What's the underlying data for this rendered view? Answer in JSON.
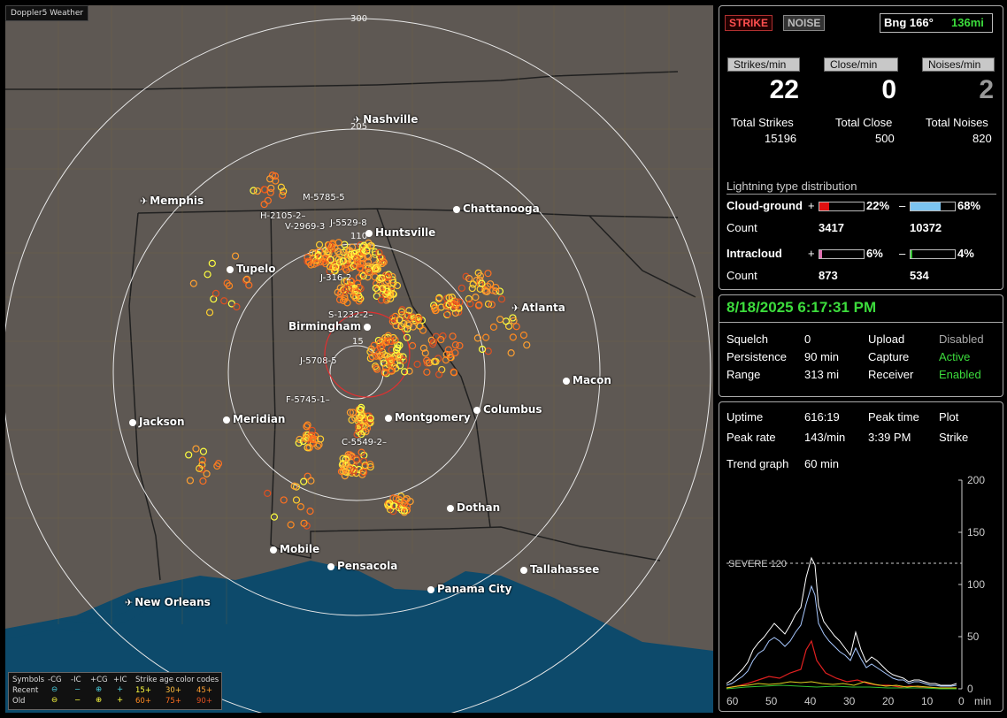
{
  "map": {
    "brand": "Doppler5 Weather",
    "ring_labels": [
      "300",
      "205",
      "110",
      "15"
    ],
    "cities": [
      {
        "name": "Nashville",
        "type": "airport"
      },
      {
        "name": "Memphis",
        "type": "airport"
      },
      {
        "name": "Chattanooga",
        "type": "city"
      },
      {
        "name": "Huntsville",
        "type": "city"
      },
      {
        "name": "Tupelo",
        "type": "city"
      },
      {
        "name": "Atlanta",
        "type": "airport"
      },
      {
        "name": "Birmingham",
        "type": "city"
      },
      {
        "name": "Macon",
        "type": "city"
      },
      {
        "name": "Jackson",
        "type": "city"
      },
      {
        "name": "Meridian",
        "type": "city"
      },
      {
        "name": "Montgomery",
        "type": "city"
      },
      {
        "name": "Columbus",
        "type": "city"
      },
      {
        "name": "Dothan",
        "type": "city"
      },
      {
        "name": "Mobile",
        "type": "city"
      },
      {
        "name": "Pensacola",
        "type": "city"
      },
      {
        "name": "Tallahassee",
        "type": "city"
      },
      {
        "name": "Panama City",
        "type": "city"
      },
      {
        "name": "New Orleans",
        "type": "airport"
      }
    ],
    "cells": [
      "M-5785-5",
      "H-2105-2–",
      "J-5529-8",
      "V-2969-3",
      "J-316-2",
      "S-1232-2–",
      "J-5708-5",
      "F-5745-1–",
      "C-5549-2–"
    ],
    "legend": {
      "symbols_label": "Symbols",
      "cols": [
        "-CG",
        "-IC",
        "+CG",
        "+IC"
      ],
      "rows": [
        "Recent",
        "Old"
      ],
      "age_title": "Strike age color codes",
      "recent_ages": [
        "15+",
        "30+",
        "45+"
      ],
      "old_ages": [
        "60+",
        "75+",
        "90+"
      ]
    }
  },
  "top": {
    "strike": "STRIKE",
    "noise": "NOISE",
    "bearing": "Bng 166°",
    "distance": "136mi",
    "rate_labels": [
      "Strikes/min",
      "Close/min",
      "Noises/min"
    ],
    "rates": [
      "22",
      "0",
      "2"
    ],
    "total_labels": [
      "Total Strikes",
      "Total Close",
      "Total Noises"
    ],
    "totals": [
      "15196",
      "500",
      "820"
    ],
    "dist_title": "Lightning type distribution",
    "cg_label": "Cloud-ground",
    "ic_label": "Intracloud",
    "count_label": "Count",
    "plus": "+",
    "minus": "–",
    "cg_pos_pct": "22%",
    "cg_neg_pct": "68%",
    "ic_pos_pct": "6%",
    "ic_neg_pct": "4%",
    "cg_pos_count": "3417",
    "cg_neg_count": "10372",
    "ic_pos_count": "873",
    "ic_neg_count": "534",
    "cg_pos_frac": 0.22,
    "cg_neg_frac": 0.68,
    "ic_pos_frac": 0.06,
    "ic_neg_frac": 0.04
  },
  "status": {
    "datetime": "8/18/2025 6:17:31 PM",
    "squelch_label": "Squelch",
    "squelch": "0",
    "upload_label": "Upload",
    "upload": "Disabled",
    "persistence_label": "Persistence",
    "persistence": "90 min",
    "capture_label": "Capture",
    "capture": "Active",
    "range_label": "Range",
    "range": "313 mi",
    "receiver_label": "Receiver",
    "receiver": "Enabled"
  },
  "trend": {
    "uptime_label": "Uptime",
    "uptime": "616:19",
    "peak_time_label": "Peak time",
    "peak_time": "3:39 PM",
    "plot_label": "Plot",
    "plot": "Strike",
    "peak_rate_label": "Peak rate",
    "peak_rate": "143/min",
    "trend_label": "Trend graph",
    "trend_value": "60 min",
    "severe_label": "SEVERE 120",
    "y_ticks": [
      "200",
      "150",
      "100",
      "50",
      "0"
    ],
    "x_ticks": [
      "60",
      "50",
      "40",
      "30",
      "20",
      "10",
      "0"
    ],
    "x_unit": "min"
  },
  "colors": {
    "green": "#3cdc3c",
    "cyan": "#4bd0e0",
    "strike_red": "#e03030"
  }
}
